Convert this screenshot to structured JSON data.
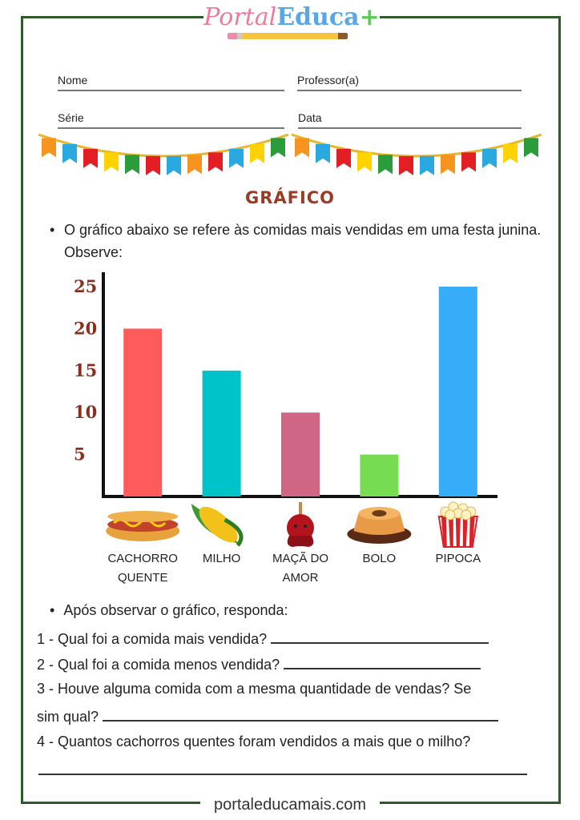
{
  "logo": {
    "part1": "Portal",
    "part2": "Educa",
    "part3": "+"
  },
  "footer": "portaleducamais.com",
  "fields": {
    "nome": "Nome",
    "professor": "Professor(a)",
    "serie": "Série",
    "data": "Data"
  },
  "title": "GRÁFICO",
  "intro": "O gráfico abaixo se refere às comidas mais vendidas em uma festa junina. Observe:",
  "bullet": "•",
  "chart_data": {
    "type": "bar",
    "categories": [
      "CACHORRO QUENTE",
      "MILHO",
      "MAÇÃ DO AMOR",
      "BOLO",
      "PIPOCA"
    ],
    "values": [
      20,
      15,
      10,
      5,
      25
    ],
    "yticks": [
      "5",
      "10",
      "15",
      "20",
      "25"
    ],
    "ylim": [
      0,
      25
    ],
    "colors": [
      "#ff5b5b",
      "#00c3c9",
      "#cf6685",
      "#78dc52",
      "#37adfa"
    ],
    "icons": [
      "hotdog-icon",
      "corn-icon",
      "candy-apple-icon",
      "cake-icon",
      "popcorn-icon"
    ]
  },
  "after_intro": "Após observar o gráfico, responda:",
  "questions": {
    "q1": "1 - Qual foi a comida mais vendida?",
    "q2": "2 - Qual foi a comida menos vendida?",
    "q3a": "3 - Houve alguma comida com a mesma quantidade de vendas? Se",
    "q3b": "sim qual?",
    "q4": "4 - Quantos cachorros quentes foram vendidos a mais que o milho?"
  }
}
